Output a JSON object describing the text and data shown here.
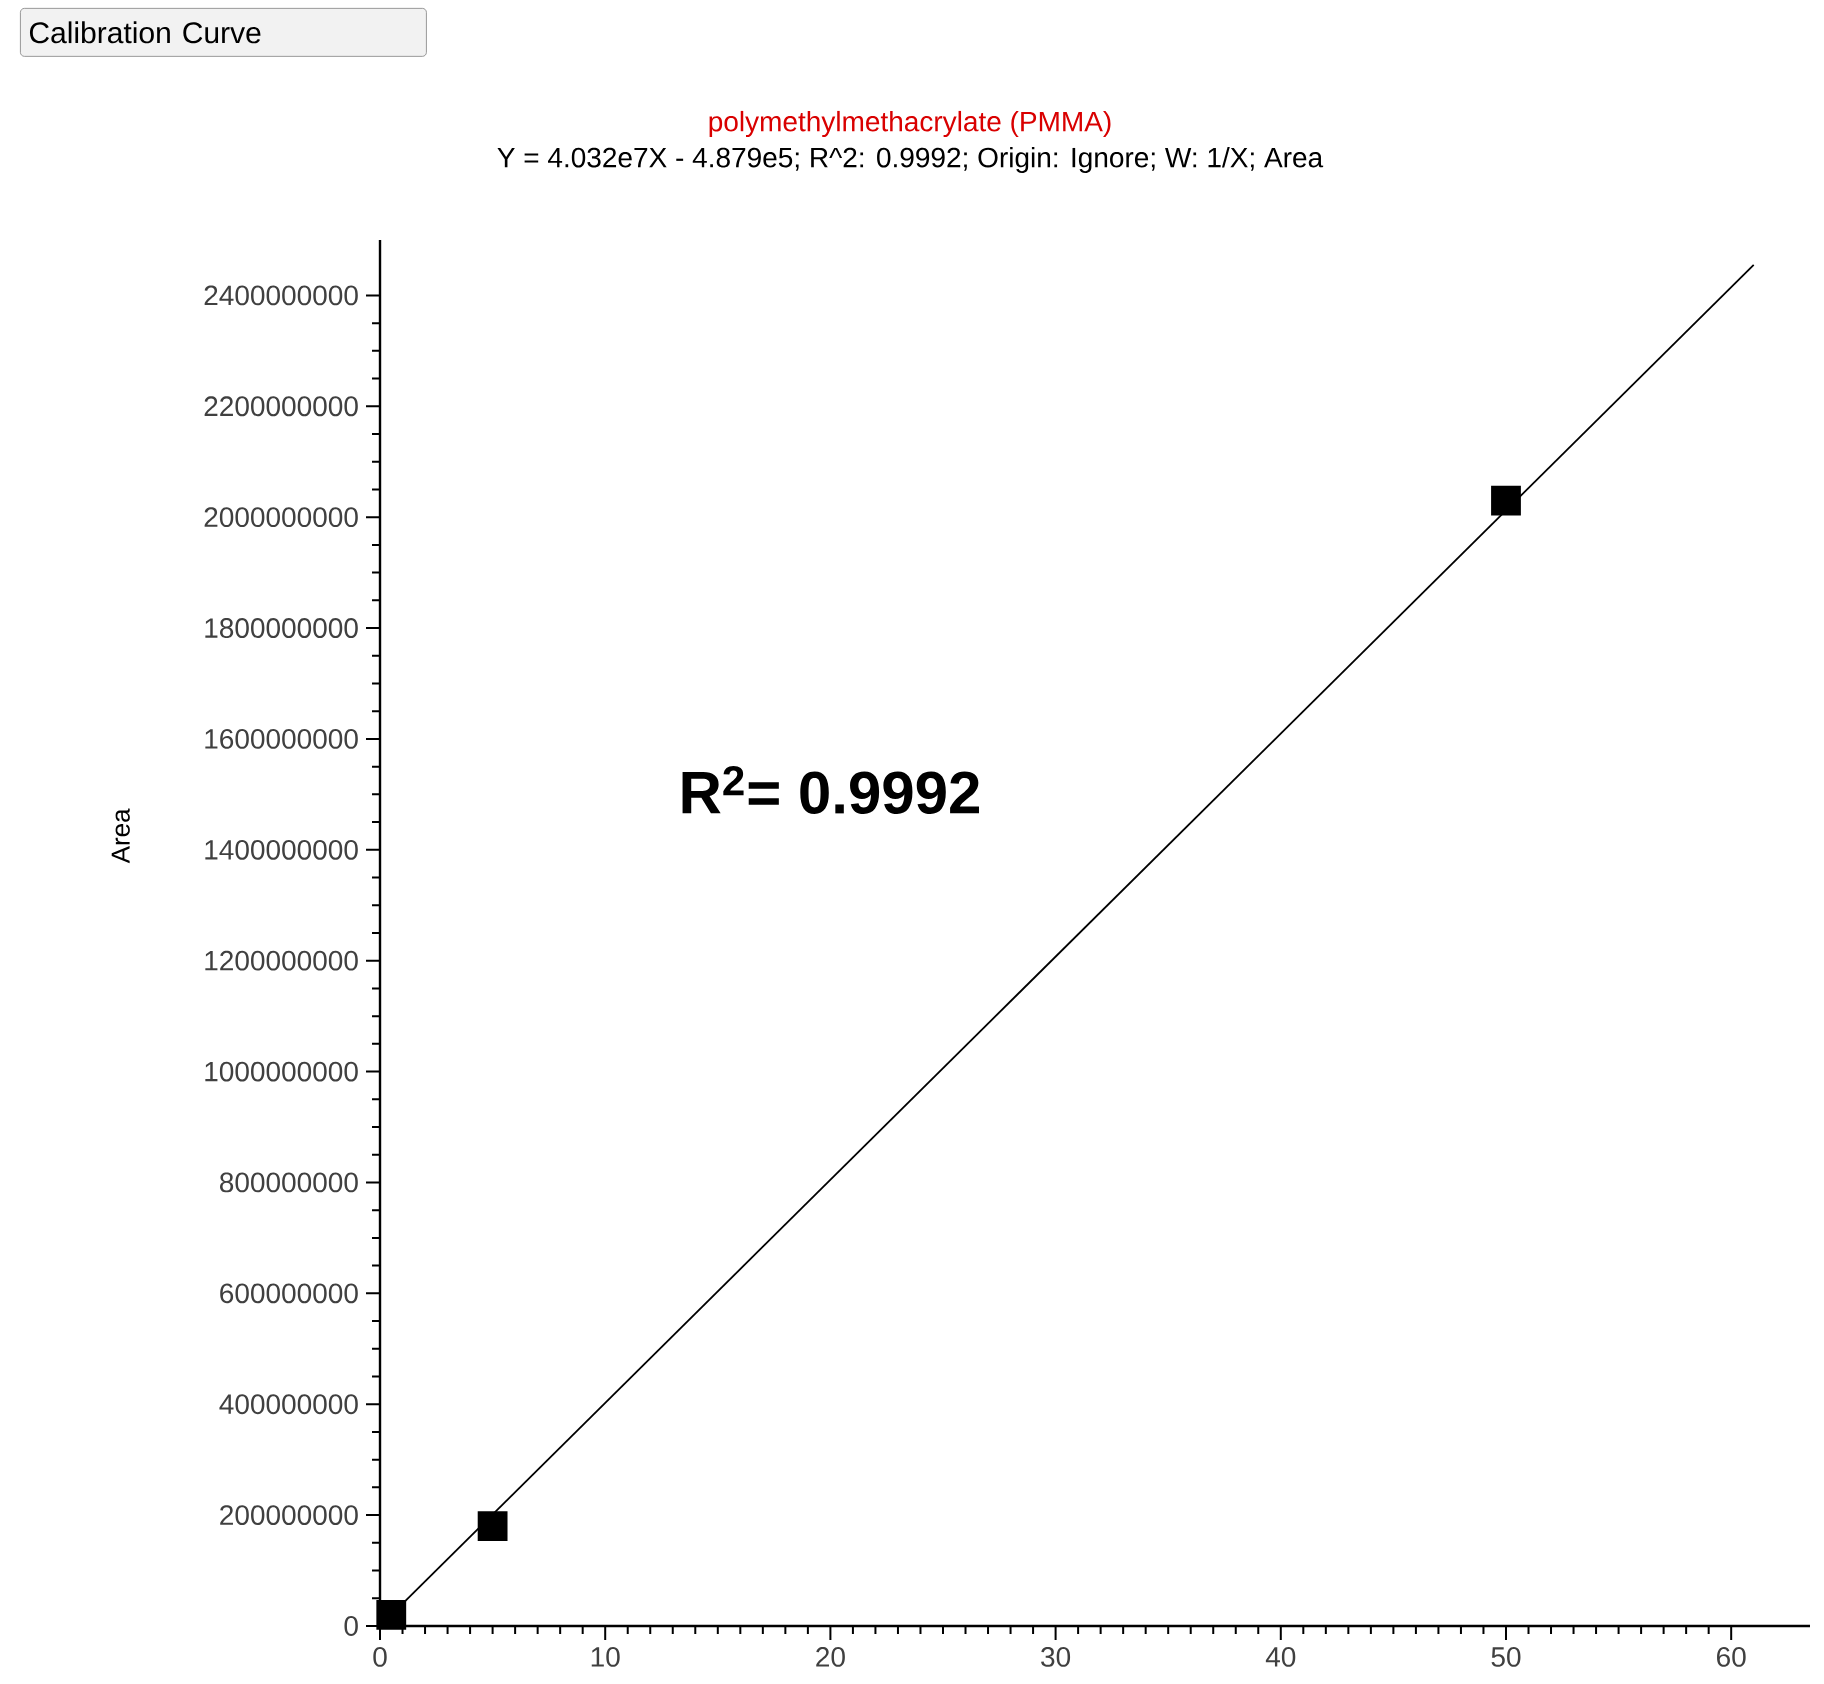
{
  "chart_data": {
    "type": "scatter",
    "title": "polymethylmethacrylate (PMMA)",
    "subtitle": "Y = 4.032e7X - 4.879e5; R^2: 0.9992; Origin: Ignore; W: 1/X; Area",
    "ylabel": "Area",
    "x": [
      0.5,
      5,
      50
    ],
    "series": [
      {
        "color": "#000000",
        "marker": "square",
        "values": [
          20000000,
          180000000,
          2030000000
        ]
      },
      {
        "type": "line",
        "color": "#000000",
        "marker": "none",
        "x": [
          0.5,
          61
        ],
        "values": [
          20000000,
          2455000000
        ]
      }
    ],
    "xlim": [
      0,
      63.5
    ],
    "ylim": [
      0,
      2500000000
    ],
    "xticks": [
      0,
      10,
      20,
      30,
      40,
      50,
      60
    ],
    "yticks": [
      0,
      200000000,
      400000000,
      600000000,
      800000000,
      1000000000,
      1200000000,
      1400000000,
      1600000000,
      1800000000,
      2000000000,
      2200000000,
      2400000000
    ],
    "annotations": [
      "Calibration Curve",
      "R$^{2}$= 0.9992"
    ]
  }
}
